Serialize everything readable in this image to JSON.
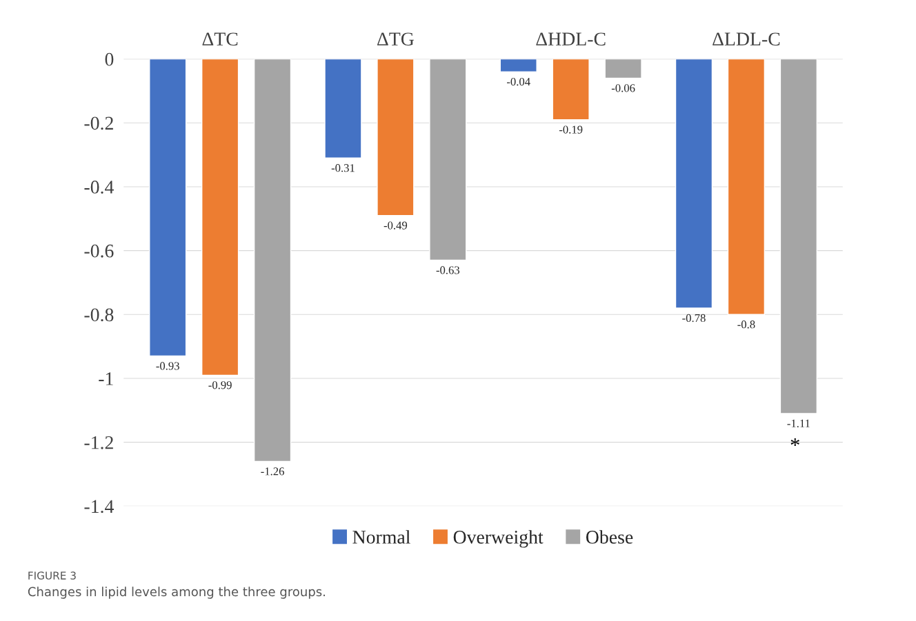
{
  "chart_data": {
    "type": "bar",
    "categories": [
      "ΔTC",
      "ΔTG",
      "ΔHDL-C",
      "ΔLDL-C"
    ],
    "series": [
      {
        "name": "Normal",
        "color": "#4472c4",
        "values": [
          -0.93,
          -0.31,
          -0.04,
          -0.78
        ]
      },
      {
        "name": "Overweight",
        "color": "#ed7d31",
        "values": [
          -0.99,
          -0.49,
          -0.19,
          -0.8
        ]
      },
      {
        "name": "Obese",
        "color": "#a5a5a5",
        "values": [
          -1.26,
          -0.63,
          -0.06,
          -1.11
        ]
      }
    ],
    "ylim": [
      -1.4,
      0
    ],
    "yticks": [
      0,
      -0.2,
      -0.4,
      -0.6,
      -0.8,
      -1,
      -1.2,
      -1.4
    ],
    "grid": "y",
    "legend": "bottom",
    "data_labels": true,
    "annotations": [
      "*",
      "FIGURE 3",
      "Changes in lipid levels among the three groups."
    ]
  }
}
